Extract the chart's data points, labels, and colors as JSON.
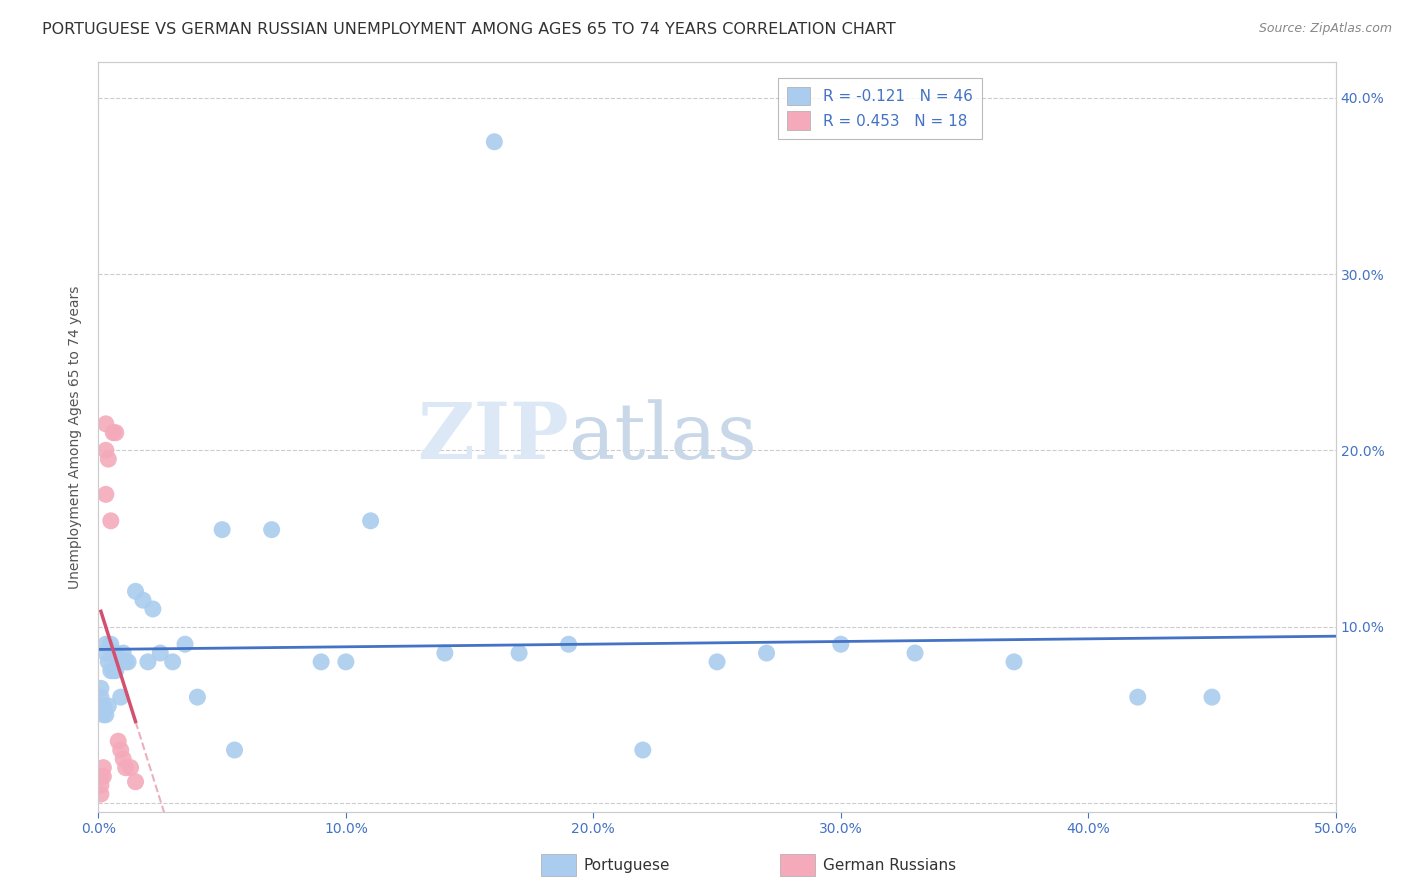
{
  "title": "PORTUGUESE VS GERMAN RUSSIAN UNEMPLOYMENT AMONG AGES 65 TO 74 YEARS CORRELATION CHART",
  "source": "Source: ZipAtlas.com",
  "ylabel": "Unemployment Among Ages 65 to 74 years",
  "xlim": [
    0,
    0.5
  ],
  "ylim": [
    -0.005,
    0.42
  ],
  "xticks": [
    0.0,
    0.1,
    0.2,
    0.3,
    0.4,
    0.5
  ],
  "yticks": [
    0.0,
    0.1,
    0.2,
    0.3,
    0.4
  ],
  "xticklabels": [
    "0.0%",
    "10.0%",
    "20.0%",
    "30.0%",
    "40.0%",
    "50.0%"
  ],
  "right_yticklabels": [
    "",
    "10.0%",
    "20.0%",
    "30.0%",
    "40.0%"
  ],
  "portuguese_color": "#aaccee",
  "german_russian_color": "#f4aabb",
  "portuguese_line_color": "#4472c4",
  "german_russian_line_color": "#d45070",
  "portuguese_R": -0.121,
  "portuguese_N": 46,
  "german_russian_R": 0.453,
  "german_russian_N": 18,
  "watermark_zip": "ZIP",
  "watermark_atlas": "atlas",
  "watermark_color_zip": "#dce8f5",
  "watermark_color_atlas": "#c8d8e8",
  "legend_label_portuguese": "Portuguese",
  "legend_label_german": "German Russians",
  "portuguese_x": [
    0.001,
    0.001,
    0.002,
    0.002,
    0.003,
    0.003,
    0.003,
    0.004,
    0.004,
    0.005,
    0.005,
    0.006,
    0.006,
    0.007,
    0.007,
    0.008,
    0.009,
    0.01,
    0.011,
    0.012,
    0.015,
    0.018,
    0.02,
    0.022,
    0.025,
    0.03,
    0.035,
    0.04,
    0.05,
    0.055,
    0.07,
    0.09,
    0.1,
    0.11,
    0.14,
    0.16,
    0.17,
    0.19,
    0.22,
    0.25,
    0.27,
    0.3,
    0.33,
    0.37,
    0.42,
    0.45
  ],
  "portuguese_y": [
    0.065,
    0.06,
    0.055,
    0.05,
    0.09,
    0.085,
    0.05,
    0.08,
    0.055,
    0.09,
    0.075,
    0.085,
    0.075,
    0.085,
    0.075,
    0.08,
    0.06,
    0.085,
    0.08,
    0.08,
    0.12,
    0.115,
    0.08,
    0.11,
    0.085,
    0.08,
    0.09,
    0.06,
    0.155,
    0.03,
    0.155,
    0.08,
    0.08,
    0.16,
    0.085,
    0.375,
    0.085,
    0.09,
    0.03,
    0.08,
    0.085,
    0.09,
    0.085,
    0.08,
    0.06,
    0.06
  ],
  "german_russian_x": [
    0.001,
    0.001,
    0.001,
    0.002,
    0.002,
    0.003,
    0.003,
    0.003,
    0.004,
    0.005,
    0.006,
    0.007,
    0.008,
    0.009,
    0.01,
    0.011,
    0.013,
    0.015
  ],
  "german_russian_y": [
    0.005,
    0.01,
    0.015,
    0.015,
    0.02,
    0.175,
    0.2,
    0.215,
    0.195,
    0.16,
    0.21,
    0.21,
    0.035,
    0.03,
    0.025,
    0.02,
    0.02,
    0.012
  ],
  "grid_color": "#cccccc",
  "tick_color": "#4472c4",
  "axis_color": "#cccccc",
  "background_color": "#ffffff",
  "title_fontsize": 11.5,
  "source_fontsize": 9,
  "label_fontsize": 10,
  "tick_fontsize": 10,
  "legend_fontsize": 11
}
